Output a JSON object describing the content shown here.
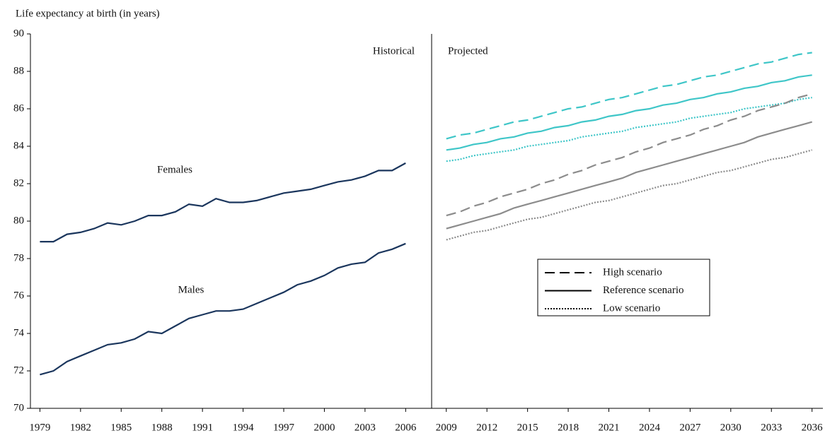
{
  "chart_data": {
    "type": "line",
    "title": "Life expectancy at birth (in years)",
    "panels": [
      "Historical",
      "Projected"
    ],
    "xlim": [
      1978.3,
      2036.8
    ],
    "xticks": [
      1979,
      1982,
      1985,
      1988,
      1991,
      1994,
      1997,
      2000,
      2003,
      2006,
      2009,
      2012,
      2015,
      2018,
      2021,
      2024,
      2027,
      2030,
      2033,
      2036
    ],
    "ylim": [
      70,
      90
    ],
    "yticks": [
      70,
      72,
      74,
      76,
      78,
      80,
      82,
      84,
      86,
      88,
      90
    ],
    "historical": {
      "x": [
        1979,
        1980,
        1981,
        1982,
        1983,
        1984,
        1985,
        1986,
        1987,
        1988,
        1989,
        1990,
        1991,
        1992,
        1993,
        1994,
        1995,
        1996,
        1997,
        1998,
        1999,
        2000,
        2001,
        2002,
        2003,
        2004,
        2005,
        2006
      ],
      "series": [
        {
          "name": "Females",
          "color": "#1b365d",
          "values": [
            78.9,
            78.9,
            79.3,
            79.4,
            79.6,
            79.9,
            79.8,
            80.0,
            80.3,
            80.3,
            80.5,
            80.9,
            80.8,
            81.2,
            81.0,
            81.0,
            81.1,
            81.3,
            81.5,
            81.6,
            81.7,
            81.9,
            82.1,
            82.2,
            82.4,
            82.7,
            82.7,
            83.1
          ]
        },
        {
          "name": "Males",
          "color": "#1b365d",
          "values": [
            71.8,
            72.0,
            72.5,
            72.8,
            73.1,
            73.4,
            73.5,
            73.7,
            74.1,
            74.0,
            74.4,
            74.8,
            75.0,
            75.2,
            75.2,
            75.3,
            75.6,
            75.9,
            76.2,
            76.6,
            76.8,
            77.1,
            77.5,
            77.7,
            77.8,
            78.3,
            78.5,
            78.8
          ]
        }
      ]
    },
    "projected": {
      "x": [
        2009,
        2010,
        2011,
        2012,
        2013,
        2014,
        2015,
        2016,
        2017,
        2018,
        2019,
        2020,
        2021,
        2022,
        2023,
        2024,
        2025,
        2026,
        2027,
        2028,
        2029,
        2030,
        2031,
        2032,
        2033,
        2034,
        2035,
        2036
      ],
      "series": [
        {
          "color": "#3fc6c8",
          "dash": "dashed",
          "values": [
            84.4,
            84.6,
            84.7,
            84.9,
            85.1,
            85.3,
            85.4,
            85.6,
            85.8,
            86.0,
            86.1,
            86.3,
            86.5,
            86.6,
            86.8,
            87.0,
            87.2,
            87.3,
            87.5,
            87.7,
            87.8,
            88.0,
            88.2,
            88.4,
            88.5,
            88.7,
            88.9,
            89.0
          ]
        },
        {
          "color": "#3fc6c8",
          "dash": "solid",
          "values": [
            83.8,
            83.9,
            84.1,
            84.2,
            84.4,
            84.5,
            84.7,
            84.8,
            85.0,
            85.1,
            85.3,
            85.4,
            85.6,
            85.7,
            85.9,
            86.0,
            86.2,
            86.3,
            86.5,
            86.6,
            86.8,
            86.9,
            87.1,
            87.2,
            87.4,
            87.5,
            87.7,
            87.8
          ]
        },
        {
          "color": "#3fc6c8",
          "dash": "dotted",
          "values": [
            83.2,
            83.3,
            83.5,
            83.6,
            83.7,
            83.8,
            84.0,
            84.1,
            84.2,
            84.3,
            84.5,
            84.6,
            84.7,
            84.8,
            85.0,
            85.1,
            85.2,
            85.3,
            85.5,
            85.6,
            85.7,
            85.8,
            86.0,
            86.1,
            86.2,
            86.3,
            86.5,
            86.6
          ]
        },
        {
          "color": "#8c8c8c",
          "dash": "dashed",
          "values": [
            80.3,
            80.5,
            80.8,
            81.0,
            81.3,
            81.5,
            81.7,
            82.0,
            82.2,
            82.5,
            82.7,
            83.0,
            83.2,
            83.4,
            83.7,
            83.9,
            84.2,
            84.4,
            84.6,
            84.9,
            85.1,
            85.4,
            85.6,
            85.9,
            86.1,
            86.3,
            86.6,
            86.8
          ]
        },
        {
          "color": "#8c8c8c",
          "dash": "solid",
          "values": [
            79.6,
            79.8,
            80.0,
            80.2,
            80.4,
            80.7,
            80.9,
            81.1,
            81.3,
            81.5,
            81.7,
            81.9,
            82.1,
            82.3,
            82.6,
            82.8,
            83.0,
            83.2,
            83.4,
            83.6,
            83.8,
            84.0,
            84.2,
            84.5,
            84.7,
            84.9,
            85.1,
            85.3
          ]
        },
        {
          "color": "#8c8c8c",
          "dash": "dotted",
          "values": [
            79.0,
            79.2,
            79.4,
            79.5,
            79.7,
            79.9,
            80.1,
            80.2,
            80.4,
            80.6,
            80.8,
            81.0,
            81.1,
            81.3,
            81.5,
            81.7,
            81.9,
            82.0,
            82.2,
            82.4,
            82.6,
            82.7,
            82.9,
            83.1,
            83.3,
            83.4,
            83.6,
            83.8
          ]
        }
      ]
    },
    "legend": [
      {
        "label": "High scenario",
        "dash": "dashed"
      },
      {
        "label": "Reference scenario",
        "dash": "solid"
      },
      {
        "label": "Low scenario",
        "dash": "dotted"
      }
    ]
  }
}
